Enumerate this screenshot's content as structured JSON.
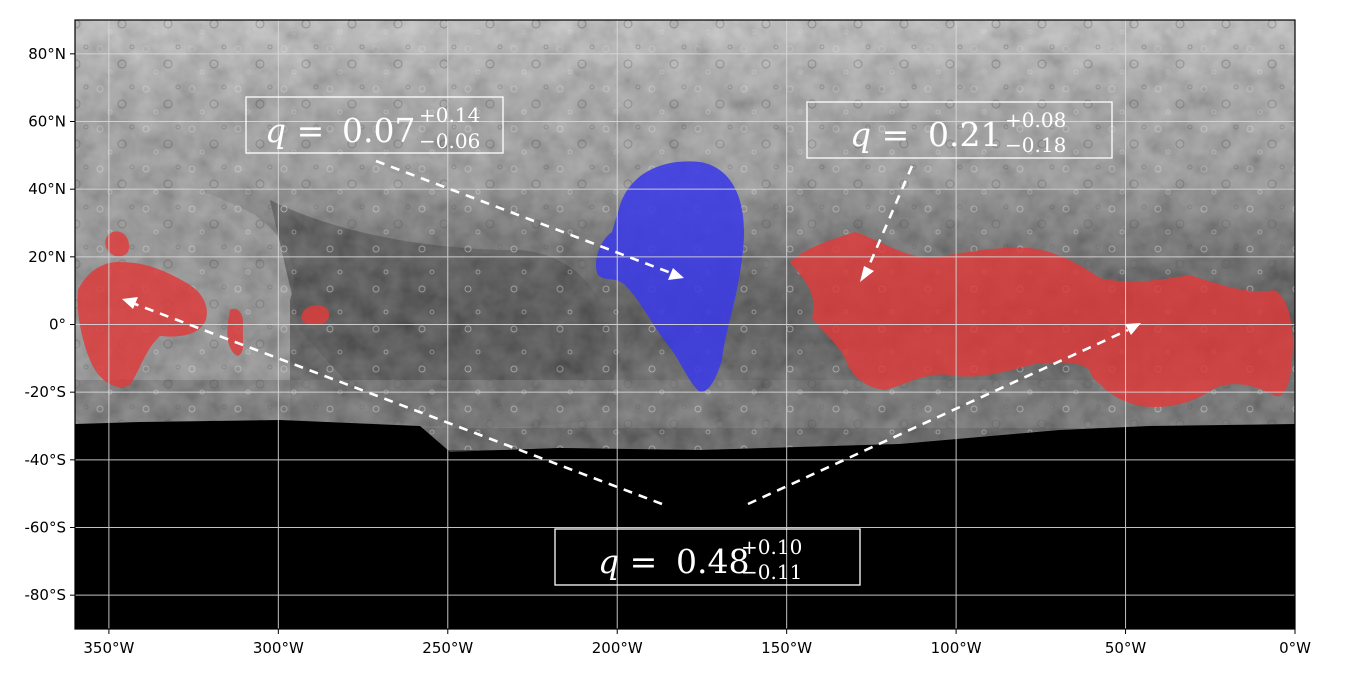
{
  "map": {
    "projection": "equirectangular (simple cylindrical)",
    "lon_range": [
      360,
      0
    ],
    "lat_range": [
      -90,
      90
    ],
    "lat_ticks": [
      {
        "value": 80,
        "label": "80°N"
      },
      {
        "value": 60,
        "label": "60°N"
      },
      {
        "value": 40,
        "label": "40°N"
      },
      {
        "value": 20,
        "label": "20°N"
      },
      {
        "value": 0,
        "label": "0°"
      },
      {
        "value": -20,
        "label": "-20°S"
      },
      {
        "value": -40,
        "label": "-40°S"
      },
      {
        "value": -60,
        "label": "-60°S"
      },
      {
        "value": -80,
        "label": "-80°S"
      }
    ],
    "lon_ticks": [
      {
        "value": 350,
        "label": "350°W"
      },
      {
        "value": 300,
        "label": "300°W"
      },
      {
        "value": 250,
        "label": "250°W"
      },
      {
        "value": 200,
        "label": "200°W"
      },
      {
        "value": 150,
        "label": "150°W"
      },
      {
        "value": 100,
        "label": "100°W"
      },
      {
        "value": 50,
        "label": "50°W"
      },
      {
        "value": 0,
        "label": "0°W"
      }
    ],
    "grid": true,
    "no_data_below_lat": -30,
    "colors": {
      "highlight_blue": "#3b3be6",
      "highlight_red": "#e03a3a",
      "no_data": "#000000",
      "grid": "#d8d8d8",
      "annotation": "#ffffff"
    }
  },
  "annotations": [
    {
      "id": "a1",
      "symbol": "q =",
      "value": "0.07",
      "sup": "+0.14",
      "sub": "−0.06"
    },
    {
      "id": "a2",
      "symbol": "q =",
      "value": "0.21",
      "sup": "+0.08",
      "sub": "−0.18"
    },
    {
      "id": "a3",
      "symbol": "q =",
      "value": "0.48",
      "sup": "+0.10",
      "sub": "−0.11"
    }
  ]
}
